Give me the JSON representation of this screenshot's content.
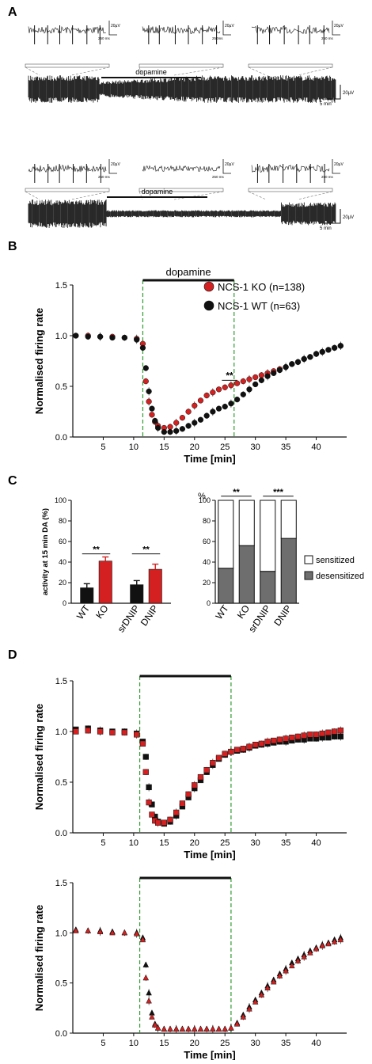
{
  "panels": {
    "A": "A",
    "B": "B",
    "C": "C",
    "D": "D"
  },
  "colors": {
    "ko": "#d42020",
    "wt": "#111111",
    "dopamine_line": "#2e9c2e",
    "desens": "#6e6e6e",
    "sens": "#ffffff"
  },
  "panel_a": {
    "traces": [
      {
        "bar_label": "dopamine",
        "insets": [
          {
            "scale_v": "20µV",
            "scale_t": "250 ms"
          },
          {
            "scale_v": "20µV",
            "scale_t": "250ms"
          },
          {
            "scale_v": "20µV",
            "scale_t": "250 ms"
          }
        ],
        "main_scale_v": "20µV",
        "main_scale_t": "5 min"
      },
      {
        "bar_label": "dopamine",
        "insets": [
          {
            "scale_v": "20µV",
            "scale_t": "250 ms"
          },
          {
            "scale_v": "20µV",
            "scale_t": "250 ms"
          },
          {
            "scale_v": "20µV",
            "scale_t": "250 ms"
          }
        ],
        "main_scale_v": "20µV",
        "main_scale_t": "5 min"
      }
    ]
  },
  "chart_data": [
    {
      "id": "B",
      "type": "scatter",
      "xlabel": "Time [min]",
      "ylabel": "Normalised firing rate",
      "xticks": [
        5,
        10,
        15,
        20,
        25,
        30,
        35,
        40
      ],
      "yticks": [
        0.0,
        0.5,
        1.0,
        1.5
      ],
      "xlim": [
        0,
        45
      ],
      "ylim": [
        0,
        1.5
      ],
      "dopamine_window": [
        11.5,
        26.5
      ],
      "dopamine_label": "dopamine",
      "annotation": "**",
      "annotation_x": [
        24.5,
        27.0
      ],
      "annotation_y": 0.56,
      "legend": [
        "NCS-1 KO (n=138)",
        "NCS-1 WT (n=63)"
      ],
      "series": [
        {
          "name": "NCS-1 KO (n=138)",
          "marker": "circle",
          "color": "#d42020",
          "x": [
            0.5,
            2.5,
            4.5,
            6.5,
            8.5,
            10.5,
            11.5,
            12.0,
            12.5,
            13.0,
            13.5,
            14.0,
            15.0,
            16.0,
            17.0,
            18.0,
            19.0,
            20.0,
            21.0,
            22.0,
            23.0,
            24.0,
            25.0,
            26.0,
            27.0,
            28.0,
            29.0,
            30.0,
            31.0,
            32.0,
            33.0,
            34.0,
            35.0,
            36.0,
            37.0,
            38.0,
            39.0,
            40.0,
            41.0,
            42.0,
            43.0,
            44.0
          ],
          "y": [
            1.0,
            1.0,
            0.99,
            0.99,
            0.98,
            0.97,
            0.92,
            0.55,
            0.35,
            0.22,
            0.15,
            0.11,
            0.09,
            0.1,
            0.14,
            0.19,
            0.25,
            0.31,
            0.36,
            0.41,
            0.44,
            0.47,
            0.49,
            0.51,
            0.53,
            0.55,
            0.57,
            0.59,
            0.61,
            0.63,
            0.65,
            0.67,
            0.69,
            0.72,
            0.74,
            0.77,
            0.79,
            0.82,
            0.84,
            0.86,
            0.88,
            0.9
          ]
        },
        {
          "name": "NCS-1 WT (n=63)",
          "marker": "circle",
          "color": "#111111",
          "x": [
            0.5,
            2.5,
            4.5,
            6.5,
            8.5,
            10.5,
            11.5,
            12.0,
            12.5,
            13.0,
            13.5,
            14.0,
            15.0,
            16.0,
            17.0,
            18.0,
            19.0,
            20.0,
            21.0,
            22.0,
            23.0,
            24.0,
            25.0,
            26.0,
            27.0,
            28.0,
            29.0,
            30.0,
            31.0,
            32.0,
            33.0,
            34.0,
            35.0,
            36.0,
            37.0,
            38.0,
            39.0,
            40.0,
            41.0,
            42.0,
            43.0,
            44.0
          ],
          "y": [
            1.0,
            0.99,
            0.99,
            0.98,
            0.98,
            0.96,
            0.88,
            0.68,
            0.45,
            0.28,
            0.16,
            0.09,
            0.05,
            0.05,
            0.06,
            0.08,
            0.11,
            0.14,
            0.17,
            0.21,
            0.25,
            0.28,
            0.3,
            0.33,
            0.37,
            0.42,
            0.47,
            0.52,
            0.56,
            0.6,
            0.63,
            0.66,
            0.69,
            0.72,
            0.74,
            0.77,
            0.79,
            0.82,
            0.84,
            0.86,
            0.88,
            0.9
          ]
        }
      ]
    },
    {
      "id": "C-left",
      "type": "bar",
      "ylabel": "activity at 15 min DA (%)",
      "categories": [
        "WT",
        "KO",
        "srDNIP",
        "DNIP"
      ],
      "yticks": [
        0,
        20,
        40,
        60,
        80,
        100
      ],
      "ylim": [
        0,
        100
      ],
      "values": [
        15,
        41,
        18,
        33
      ],
      "errors": [
        4,
        4,
        4,
        5
      ],
      "bar_colors": [
        "#111111",
        "#d42020",
        "#111111",
        "#d42020"
      ],
      "annotations": [
        {
          "pair": [
            0,
            1
          ],
          "label": "**",
          "y": 48
        },
        {
          "pair": [
            2,
            3
          ],
          "label": "**",
          "y": 48
        }
      ]
    },
    {
      "id": "C-right",
      "type": "bar",
      "stacked": true,
      "ylabel": "%",
      "categories": [
        "WT",
        "KO",
        "srDNIP",
        "DNIP"
      ],
      "yticks": [
        0,
        20,
        40,
        60,
        80,
        100
      ],
      "ylim": [
        0,
        100
      ],
      "series": [
        {
          "name": "desensitized",
          "values": [
            34,
            56,
            31,
            63
          ]
        },
        {
          "name": "sensitized",
          "values": [
            66,
            44,
            69,
            37
          ]
        }
      ],
      "legend": [
        "sensitized",
        "desensitized"
      ],
      "annotations": [
        {
          "pair": [
            0,
            1
          ],
          "label": "**",
          "y": 104
        },
        {
          "pair": [
            2,
            3
          ],
          "label": "***",
          "y": 104
        }
      ]
    },
    {
      "id": "D-top",
      "type": "scatter",
      "xlabel": "Time [min]",
      "ylabel": "Normalised firing rate",
      "xticks": [
        5,
        10,
        15,
        20,
        25,
        30,
        35,
        40
      ],
      "yticks": [
        0.0,
        0.5,
        1.0,
        1.5
      ],
      "xlim": [
        0,
        45
      ],
      "ylim": [
        0,
        1.5
      ],
      "dopamine_window": [
        11.0,
        26.0
      ],
      "series": [
        {
          "name": "black squares",
          "marker": "square",
          "color": "#111111",
          "x": [
            0.5,
            2.5,
            4.5,
            6.5,
            8.5,
            10.5,
            11.5,
            12.0,
            12.5,
            13.0,
            13.5,
            14.0,
            15.0,
            16.0,
            17.0,
            18.0,
            19.0,
            20.0,
            21.0,
            22.0,
            23.0,
            24.0,
            25.0,
            26.0,
            27.0,
            28.0,
            29.0,
            30.0,
            31.0,
            32.0,
            33.0,
            34.0,
            35.0,
            36.0,
            37.0,
            38.0,
            39.0,
            40.0,
            41.0,
            42.0,
            43.0,
            44.0
          ],
          "y": [
            1.02,
            1.03,
            1.01,
            1.0,
            1.0,
            0.98,
            0.9,
            0.75,
            0.45,
            0.28,
            0.16,
            0.11,
            0.09,
            0.11,
            0.17,
            0.26,
            0.35,
            0.44,
            0.52,
            0.6,
            0.67,
            0.73,
            0.77,
            0.8,
            0.81,
            0.82,
            0.84,
            0.86,
            0.87,
            0.88,
            0.89,
            0.9,
            0.9,
            0.91,
            0.92,
            0.92,
            0.93,
            0.93,
            0.94,
            0.94,
            0.95,
            0.95
          ]
        },
        {
          "name": "red squares",
          "marker": "square",
          "color": "#d42020",
          "x": [
            0.5,
            2.5,
            4.5,
            6.5,
            8.5,
            10.5,
            11.5,
            12.0,
            12.5,
            13.0,
            13.5,
            14.0,
            15.0,
            16.0,
            17.0,
            18.0,
            19.0,
            20.0,
            21.0,
            22.0,
            23.0,
            24.0,
            25.0,
            26.0,
            27.0,
            28.0,
            29.0,
            30.0,
            31.0,
            32.0,
            33.0,
            34.0,
            35.0,
            36.0,
            37.0,
            38.0,
            39.0,
            40.0,
            41.0,
            42.0,
            43.0,
            44.0
          ],
          "y": [
            1.0,
            1.01,
            1.0,
            0.99,
            0.99,
            0.97,
            0.88,
            0.6,
            0.3,
            0.18,
            0.12,
            0.1,
            0.1,
            0.13,
            0.2,
            0.29,
            0.38,
            0.47,
            0.55,
            0.62,
            0.69,
            0.74,
            0.78,
            0.8,
            0.82,
            0.83,
            0.85,
            0.87,
            0.88,
            0.9,
            0.91,
            0.92,
            0.93,
            0.94,
            0.95,
            0.96,
            0.97,
            0.97,
            0.98,
            0.99,
            1.0,
            1.01
          ]
        }
      ]
    },
    {
      "id": "D-bottom",
      "type": "scatter",
      "xlabel": "Time [min]",
      "ylabel": "Normalised firing rate",
      "xticks": [
        5,
        10,
        15,
        20,
        25,
        30,
        35,
        40
      ],
      "yticks": [
        0.0,
        0.5,
        1.0,
        1.5
      ],
      "xlim": [
        0,
        45
      ],
      "ylim": [
        0,
        1.5
      ],
      "dopamine_window": [
        11.0,
        26.0
      ],
      "series": [
        {
          "name": "black triangles",
          "marker": "triangle",
          "color": "#111111",
          "x": [
            0.5,
            2.5,
            4.5,
            6.5,
            8.5,
            10.5,
            11.5,
            12.0,
            12.5,
            13.0,
            13.5,
            14.0,
            15.0,
            16.0,
            17.0,
            18.0,
            19.0,
            20.0,
            21.0,
            22.0,
            23.0,
            24.0,
            25.0,
            26.0,
            27.0,
            28.0,
            29.0,
            30.0,
            31.0,
            32.0,
            33.0,
            34.0,
            35.0,
            36.0,
            37.0,
            38.0,
            39.0,
            40.0,
            41.0,
            42.0,
            43.0,
            44.0
          ],
          "y": [
            1.03,
            1.02,
            1.02,
            1.01,
            1.0,
            1.0,
            0.95,
            0.68,
            0.4,
            0.2,
            0.09,
            0.05,
            0.04,
            0.04,
            0.04,
            0.04,
            0.04,
            0.04,
            0.04,
            0.04,
            0.04,
            0.04,
            0.04,
            0.05,
            0.1,
            0.18,
            0.26,
            0.33,
            0.4,
            0.47,
            0.53,
            0.59,
            0.64,
            0.7,
            0.74,
            0.78,
            0.82,
            0.85,
            0.88,
            0.9,
            0.93,
            0.95
          ]
        },
        {
          "name": "red triangles",
          "marker": "triangle",
          "color": "#d42020",
          "x": [
            0.5,
            2.5,
            4.5,
            6.5,
            8.5,
            10.5,
            11.5,
            12.0,
            12.5,
            13.0,
            13.5,
            14.0,
            15.0,
            16.0,
            17.0,
            18.0,
            19.0,
            20.0,
            21.0,
            22.0,
            23.0,
            24.0,
            25.0,
            26.0,
            27.0,
            28.0,
            29.0,
            30.0,
            31.0,
            32.0,
            33.0,
            34.0,
            35.0,
            36.0,
            37.0,
            38.0,
            39.0,
            40.0,
            41.0,
            42.0,
            43.0,
            44.0
          ],
          "y": [
            1.02,
            1.02,
            1.01,
            1.0,
            1.0,
            0.99,
            0.93,
            0.55,
            0.32,
            0.16,
            0.08,
            0.05,
            0.04,
            0.04,
            0.04,
            0.04,
            0.04,
            0.04,
            0.04,
            0.04,
            0.04,
            0.04,
            0.04,
            0.05,
            0.09,
            0.16,
            0.24,
            0.31,
            0.38,
            0.45,
            0.51,
            0.57,
            0.62,
            0.67,
            0.72,
            0.76,
            0.8,
            0.84,
            0.87,
            0.89,
            0.91,
            0.93
          ]
        }
      ]
    }
  ]
}
